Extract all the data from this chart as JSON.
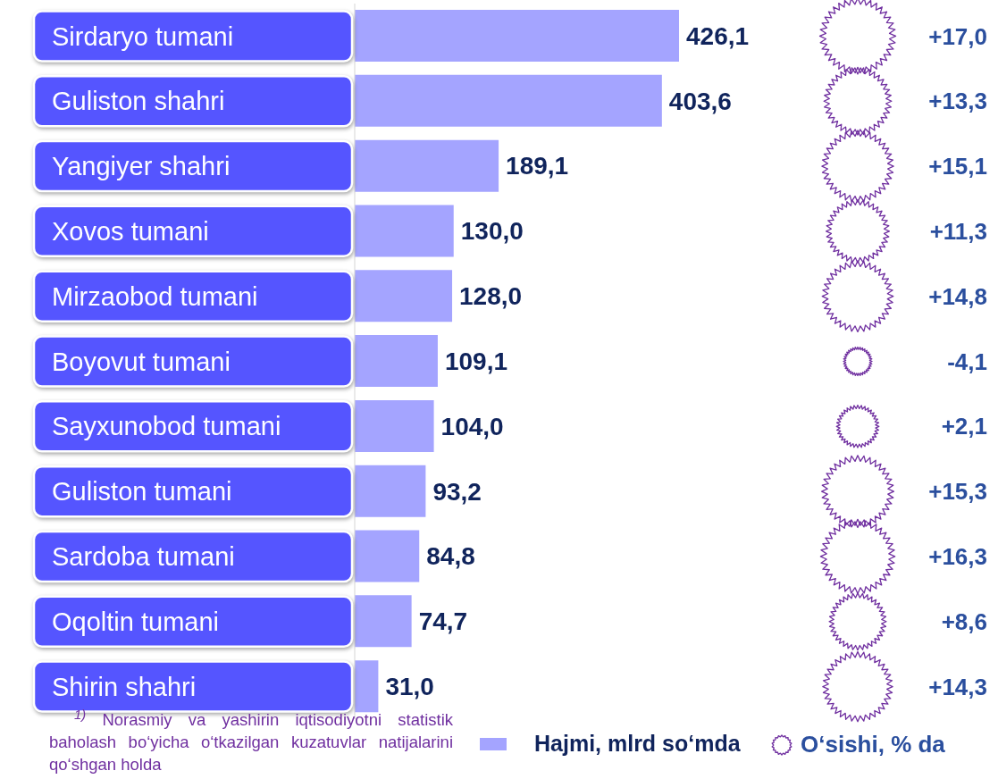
{
  "chart_data": [
    {
      "type": "bar",
      "orientation": "horizontal",
      "categories": [
        "Sirdaryo tumani",
        "Guliston shahri",
        "Yangiyer shahri",
        "Xovos tumani",
        "Mirzaobod tumani",
        "Boyovut tumani",
        "Sayxunobod tumani",
        "Guliston tumani",
        "Sardoba tumani",
        "Oqoltin tumani",
        "Shirin shahri"
      ],
      "series": [
        {
          "name": "Hajmi, mlrd so‘mda",
          "color": "#a4a4ff",
          "values": [
            426.1,
            403.6,
            189.1,
            130.0,
            128.0,
            109.1,
            104.0,
            93.2,
            84.8,
            74.7,
            31.0
          ],
          "value_labels": [
            "426,1",
            "403,6",
            "189,1",
            "130,0",
            "128,0",
            "109,1",
            "104,0",
            "93,2",
            "84,8",
            "74,7",
            "31,0"
          ]
        }
      ],
      "tick_labels": "y",
      "legend": "bottom",
      "annotations": [
        "$^{1)}$ Norasmiy va yashirin iqtisodiyotni statistik baholash bo‘yicha o‘tkazilgan kuzatuvlar natijalarini qo‘shgan holda"
      ]
    },
    {
      "type": "other",
      "categories": [
        null,
        null,
        null,
        null,
        null,
        null,
        null,
        null,
        null,
        null,
        null
      ],
      "series": [
        {
          "name": "O‘sishi, % da",
          "color": "#7030a0",
          "values": [
            17.0,
            13.3,
            15.1,
            11.3,
            14.8,
            -4.1,
            2.1,
            15.3,
            16.3,
            8.6,
            14.3
          ],
          "value_labels": [
            "+17,0",
            "+13,3",
            "+15,1",
            "+11,3",
            "+14,8",
            "-4,1",
            "+2,1",
            "+15,3",
            "+16,3",
            "+8,6",
            "+14,3"
          ]
        }
      ],
      "legend": "bottom"
    }
  ]
}
